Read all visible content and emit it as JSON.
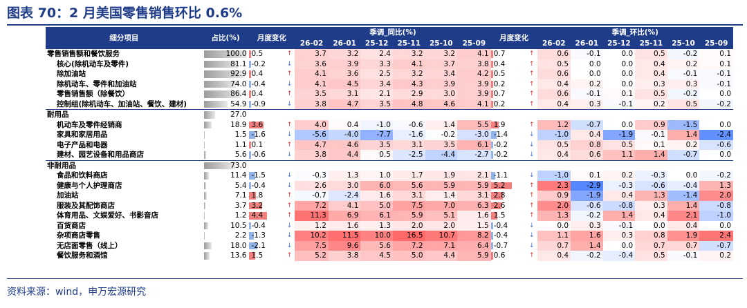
{
  "title": "图表 70：2 月美国零售销售环比 0.6%",
  "source": "资料来源：wind，申万宏源研究",
  "headers": {
    "item": "细分项目",
    "share": "占比(%)",
    "mom_change": "月度变化",
    "yoy_group": "季调_同比(%)",
    "mom_change2": "月度变化",
    "mom_group": "季调_环比(%)",
    "months": [
      "26-02",
      "26-01",
      "25-12",
      "25-11",
      "25-10",
      "25-09"
    ]
  },
  "rows": [
    {
      "name": "零售销售额和餐饮服务",
      "indent": 0,
      "share": "100.0",
      "c1": "0.5",
      "a1": "up",
      "yoy": [
        "3.7",
        "3.2",
        "2.4",
        "3.2",
        "3.2",
        "4.1"
      ],
      "c2": "0.7",
      "a2": "up",
      "mom": [
        "0.6",
        "-0.1",
        "0.0",
        "0.5",
        "-0.2",
        "0.1"
      ]
    },
    {
      "name": "核心(除机动车及零件)",
      "indent": 1,
      "share": "81.1",
      "c1": "-0.2",
      "a1": "down",
      "yoy": [
        "3.6",
        "3.9",
        "3.3",
        "4.1",
        "3.7",
        "3.8"
      ],
      "c2": "0.4",
      "a2": "up",
      "mom": [
        "0.5",
        "0.0",
        "0.0",
        "0.4",
        "0.2",
        "0.1"
      ]
    },
    {
      "name": "除加油站",
      "indent": 1,
      "share": "92.9",
      "c1": "0.4",
      "a1": "up",
      "yoy": [
        "4.1",
        "3.6",
        "2.5",
        "3.2",
        "3.4",
        "4.2"
      ],
      "c2": "0.5",
      "a2": "up",
      "mom": [
        "0.6",
        "0.0",
        "0.0",
        "0.4",
        "-0.1",
        "-0.1"
      ]
    },
    {
      "name": "除机动车、零件和加油站",
      "indent": 1,
      "share": "74.0",
      "c1": "-0.4",
      "a1": "down",
      "yoy": [
        "4.1",
        "4.5",
        "3.4",
        "4.3",
        "3.9",
        "3.9"
      ],
      "c2": "0.2",
      "a2": "up",
      "mom": [
        "0.4",
        "0.2",
        "0.0",
        "0.3",
        "0.3",
        "-0.1"
      ]
    },
    {
      "name": "零售销售额（除餐饮）",
      "indent": 1,
      "share": "86.4",
      "c1": "0.4",
      "a1": "up",
      "yoy": [
        "3.5",
        "3.1",
        "2.1",
        "2.9",
        "3.0",
        "3.9"
      ],
      "c2": "0.7",
      "a2": "up",
      "mom": [
        "0.6",
        "-0.1",
        "0.1",
        "0.5",
        "-0.2",
        "0.0"
      ]
    },
    {
      "name": "控制组(除机动车、加油站、餐饮、建材)",
      "indent": 1,
      "share": "54.9",
      "c1": "-0.9",
      "a1": "down",
      "yoy": [
        "3.8",
        "4.7",
        "3.5",
        "4.8",
        "4.6",
        "4.1"
      ],
      "c2": "0.2",
      "a2": "up",
      "mom": [
        "0.4",
        "0.3",
        "-0.1",
        "0.2",
        "0.5",
        "-0.2"
      ]
    },
    {
      "name": "耐用品",
      "indent": 0,
      "sep": true,
      "share": "27.0",
      "c1": "",
      "a1": "",
      "yoy": [
        "",
        "",
        "",
        "",
        "",
        ""
      ],
      "c2": "",
      "a2": "",
      "mom": [
        "",
        "",
        "",
        "",
        "",
        ""
      ]
    },
    {
      "name": "机动车及零件经销商",
      "indent": 1,
      "share": "18.9",
      "c1": "3.6",
      "a1": "up",
      "yoy": [
        "4.0",
        "0.4",
        "-1.0",
        "-0.6",
        "1.4",
        "5.5"
      ],
      "c2": "1.9",
      "a2": "up",
      "mom": [
        "1.2",
        "-0.7",
        "0.0",
        "0.9",
        "-1.5",
        "0.0"
      ]
    },
    {
      "name": "家具和家居用品",
      "indent": 1,
      "share": "1.5",
      "c1": "-1.6",
      "a1": "down",
      "yoy": [
        "-5.6",
        "-4.0",
        "-7.7",
        "-1.6",
        "-0.2",
        "-3.0"
      ],
      "c2": "-1.4",
      "a2": "down",
      "mom": [
        "-1.0",
        "0.4",
        "-1.9",
        "-0.1",
        "1.4",
        "-2.4"
      ]
    },
    {
      "name": "电子产品和电器",
      "indent": 1,
      "share": "1.1",
      "c1": "0.1",
      "a1": "up",
      "yoy": [
        "4.7",
        "4.6",
        "3.5",
        "3.1",
        "3.5",
        "6.1"
      ],
      "c2": "-0.2",
      "a2": "down",
      "mom": [
        "0.5",
        "0.8",
        "0.5",
        "0.1",
        "0.2",
        "-0.6"
      ]
    },
    {
      "name": "建材、园艺设备和用品商店",
      "indent": 1,
      "share": "5.6",
      "c1": "-0.6",
      "a1": "down",
      "yoy": [
        "3.8",
        "4.4",
        "0.5",
        "-2.5",
        "-4.4",
        "-2.7"
      ],
      "c2": "-0.2",
      "a2": "down",
      "mom": [
        "0.4",
        "0.6",
        "1.1",
        "1.4",
        "-0.7",
        "0.0"
      ]
    },
    {
      "name": "非耐用品",
      "indent": 0,
      "sep": true,
      "share": "73.0",
      "c1": "",
      "a1": "",
      "yoy": [
        "",
        "",
        "",
        "",
        "",
        ""
      ],
      "c2": "",
      "a2": "",
      "mom": [
        "",
        "",
        "",
        "",
        "",
        ""
      ]
    },
    {
      "name": "食品和饮料商店",
      "indent": 1,
      "share": "11.4",
      "c1": "-1.5",
      "a1": "down",
      "yoy": [
        "-0.3",
        "1.3",
        "1.0",
        "1.7",
        "1.9",
        "2.1"
      ],
      "c2": "-1.1",
      "a2": "down",
      "mom": [
        "-1.0",
        "0.1",
        "0.2",
        "-0.3",
        "0.0",
        "-0.2"
      ]
    },
    {
      "name": "健康与个人护理商店",
      "indent": 1,
      "share": "5.4",
      "c1": "-0.4",
      "a1": "down",
      "yoy": [
        "2.6",
        "3.0",
        "6.0",
        "5.6",
        "5.9",
        "5.9"
      ],
      "c2": "5.2",
      "a2": "up",
      "mom": [
        "2.3",
        "-2.9",
        "-0.3",
        "-0.6",
        "-0.4",
        "1.3"
      ]
    },
    {
      "name": "加油站",
      "indent": 1,
      "share": "7.1",
      "c1": "1.8",
      "a1": "up",
      "yoy": [
        "-0.7",
        "-2.4",
        "1.6",
        "3.1",
        "1.4",
        "3.1"
      ],
      "c2": "2.8",
      "a2": "up",
      "mom": [
        "0.9",
        "-1.9",
        "0.4",
        "1.3",
        "-1.4",
        "2.0"
      ]
    },
    {
      "name": "服装及其配饰商店",
      "indent": 1,
      "share": "3.7",
      "c1": "3.2",
      "a1": "up",
      "yoy": [
        "7.2",
        "4.1",
        "5.0",
        "7.5",
        "7.0",
        "6.3"
      ],
      "c2": "2.6",
      "a2": "up",
      "mom": [
        "2.0",
        "-0.6",
        "-0.8",
        "0.3",
        "1.4",
        "-0.8"
      ]
    },
    {
      "name": "体育用品、文娱爱好、书影音店",
      "indent": 1,
      "share": "1.2",
      "c1": "4.4",
      "a1": "up",
      "yoy": [
        "11.3",
        "6.9",
        "6.1",
        "5.9",
        "5.1",
        "1.6"
      ],
      "c2": "1.5",
      "a2": "up",
      "mom": [
        "1.3",
        "-0.2",
        "1.4",
        "0.4",
        "2.1",
        "-1.0"
      ]
    },
    {
      "name": "百货商店",
      "indent": 1,
      "share": "10.5",
      "c1": "-0.4",
      "a1": "down",
      "yoy": [
        "1.2",
        "1.6",
        "1.3",
        "2.0",
        "2.0",
        "1.5"
      ],
      "c2": "-0.4",
      "a2": "down",
      "mom": [
        "0.0",
        "0.3",
        "-0.1",
        "0.0",
        "0.4",
        "0.0"
      ]
    },
    {
      "name": "杂项商店零售",
      "indent": 1,
      "share": "2.2",
      "c1": "-1.3",
      "a1": "down",
      "yoy": [
        "10.2",
        "11.5",
        "10.0",
        "16.5",
        "10.7",
        "8.2"
      ],
      "c2": "-0.4",
      "a2": "down",
      "mom": [
        "1.1",
        "1.6",
        "0.3",
        "0.8",
        "1.9",
        "2.4"
      ]
    },
    {
      "name": "无店面零售（线上）",
      "indent": 1,
      "share": "18.0",
      "c1": "-2.1",
      "a1": "down",
      "yoy": [
        "7.5",
        "9.6",
        "5.6",
        "7.2",
        "7.1",
        "6.4"
      ],
      "c2": "-0.7",
      "a2": "down",
      "mom": [
        "0.7",
        "1.4",
        "0.0",
        "0.7",
        "0.7",
        "-0.7"
      ]
    },
    {
      "name": "餐饮服务和酒馆",
      "indent": 1,
      "share": "13.6",
      "c1": "1.5",
      "a1": "up",
      "yoy": [
        "5.2",
        "3.8",
        "4.5",
        "5.0",
        "4.4",
        "5.9"
      ],
      "c2": "0.6",
      "a2": "up",
      "mom": [
        "0.4",
        "-0.2",
        "-0.4",
        "0.5",
        "-0.1",
        "0.2"
      ]
    }
  ]
}
